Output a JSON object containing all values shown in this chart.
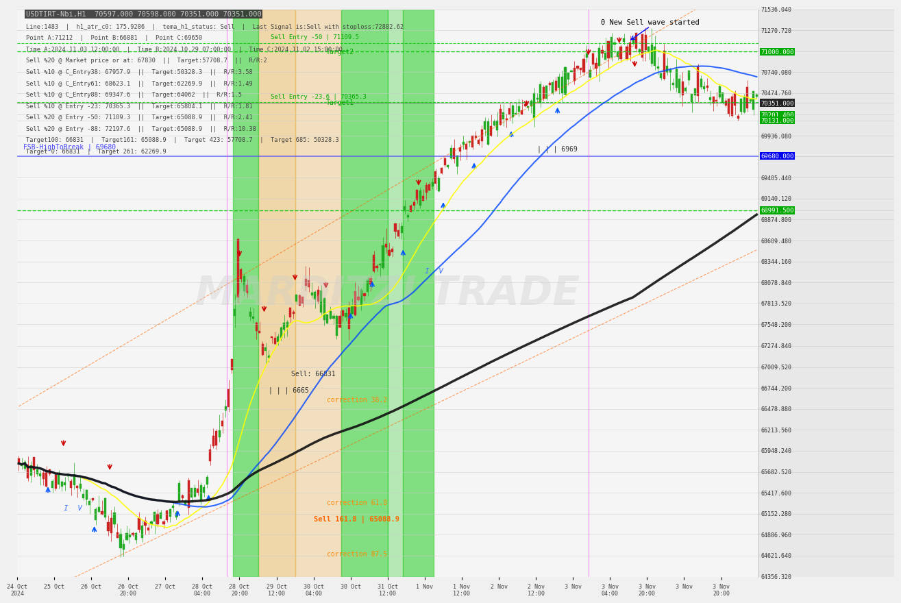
{
  "title": "USDTIRT-Nbi,H1  70597.000 70598.000 70351.000 70351.000",
  "subtitle_lines": [
    "Line:1483  |  h1_atr_c0: 175.9286  |  tema_h1_status: Sell  |  Last Signal is:Sell with stoploss:72882.62",
    "Point A:71212  |  Point B:66881  |  Point C:69650",
    "Time A:2024.11.03 12:00:00  |  Time B:2024.10.29 07:00:00  |  Time C:2024.11.02 15:00:00",
    "Sell %20 @ Market price or at: 67830  ||  Target:57708.7  ||  R/R:2",
    "Sell %10 @ C_Entry38: 67957.9  ||  Target:50328.3  ||  R/R:3.58",
    "Sell %10 @ C_Entry61: 68623.1  ||  Target:62269.9  ||  R/R:1.49",
    "Sell %10 @ C_Entry88: 69347.6  ||  Target:64062  ||  R/R:1.5",
    "Sell %10 @ Entry -23: 70365.3  ||  Target:65804.1  ||  R/R:1.81",
    "Sell %20 @ Entry -50: 71109.3  ||  Target:65088.9  ||  R/R:2.41",
    "Sell %20 @ Entry -88: 72197.6  ||  Target:65088.9  ||  R/R:10.38",
    "Target100: 66831  |  Target161: 65088.9  |  Target 423: 57708.7  |  Target 685: 50328.3",
    "Target 0: 66831  |  Target 261: 62269.9"
  ],
  "bg_color": "#f0f0f0",
  "chart_bg": "#f5f5f5",
  "price_min": 64356.32,
  "price_max": 71536.04,
  "y_labels": [
    71536.04,
    71270.72,
    71000.0,
    70740.08,
    70474.76,
    70351.0,
    70201.4,
    70131.0,
    69936.08,
    69680.0,
    69405.44,
    69140.12,
    68991.5,
    68874.8,
    68609.48,
    68344.16,
    68078.84,
    67813.52,
    67548.2,
    67274.84,
    67009.52,
    66744.2,
    66478.88,
    66213.56,
    65948.24,
    65682.52,
    65417.6,
    65152.28,
    64886.96,
    64621.64,
    64356.32
  ],
  "watermark": "MARDITZI TRADE"
}
